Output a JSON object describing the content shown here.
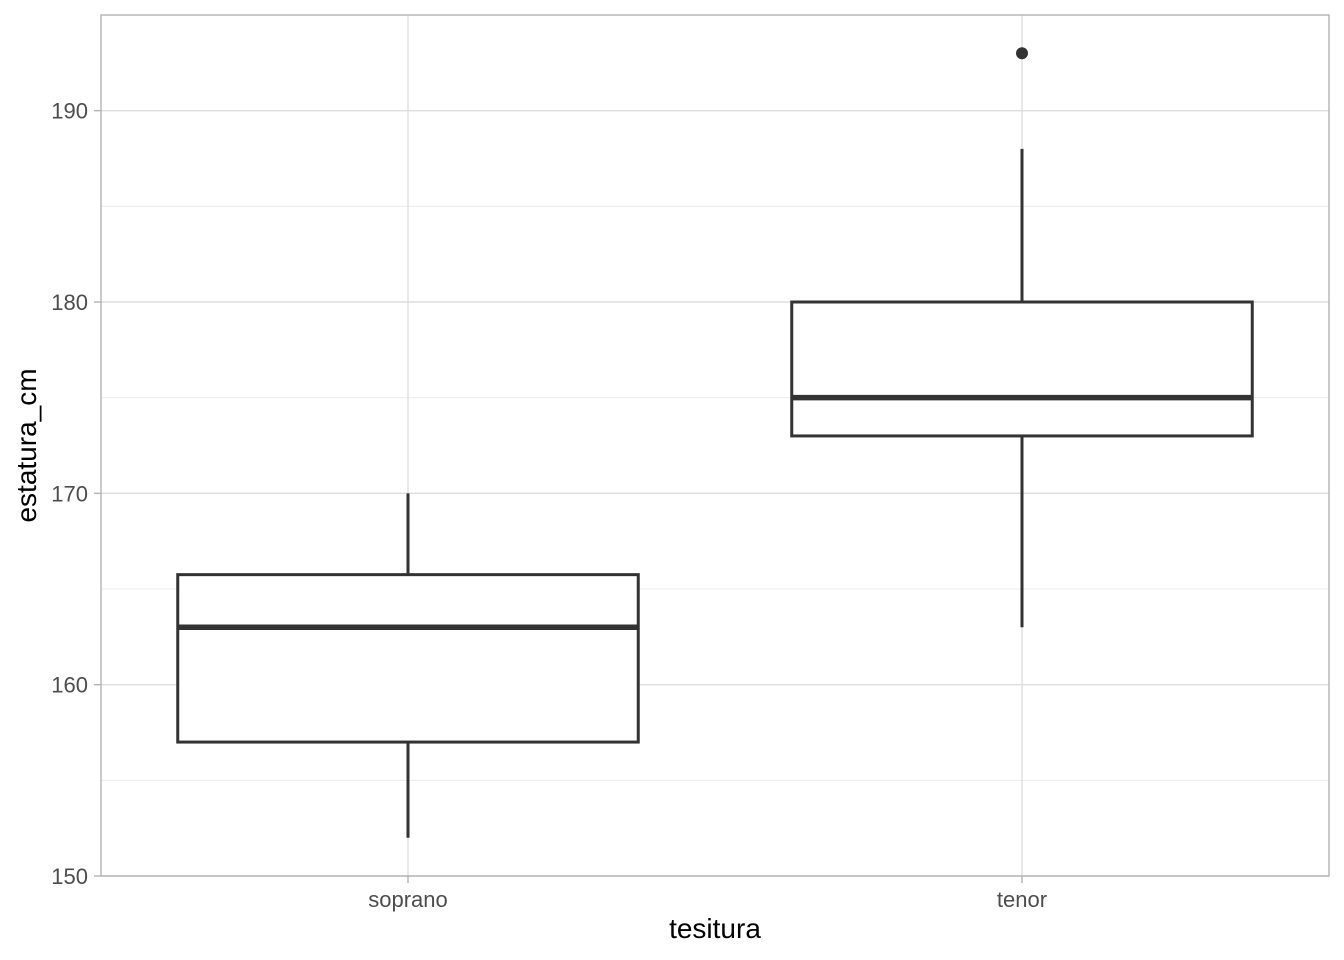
{
  "chart_data": {
    "type": "boxplot",
    "xlabel": "tesitura",
    "ylabel": "estatura_cm",
    "ylim": [
      150,
      195
    ],
    "y_ticks": [
      150,
      160,
      170,
      180,
      190
    ],
    "grid": true,
    "legend": "none",
    "colors": {
      "box_stroke": "#333333",
      "box_fill": "#ffffff",
      "grid": "#dedede",
      "panel_border": "#b3b3b3"
    },
    "categories": [
      "soprano",
      "tenor"
    ],
    "boxes": [
      {
        "category": "soprano",
        "whisker_low": 152,
        "q1": 157,
        "median": 163,
        "q3": 165.75,
        "whisker_high": 170,
        "outliers": []
      },
      {
        "category": "tenor",
        "whisker_low": 163,
        "q1": 173,
        "median": 175,
        "q3": 180,
        "whisker_high": 188,
        "outliers": [
          193
        ]
      }
    ]
  }
}
